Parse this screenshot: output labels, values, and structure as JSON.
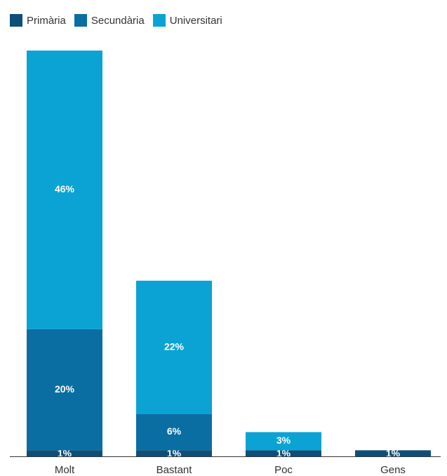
{
  "chart_data": {
    "type": "bar",
    "stacked": true,
    "categories": [
      "Molt",
      "Bastant",
      "Poc",
      "Gens"
    ],
    "series": [
      {
        "name": "Primària",
        "color": "#0d4f78",
        "values": [
          1,
          1,
          1,
          1
        ],
        "labels": [
          "1%",
          "1%",
          "1%",
          "1%"
        ]
      },
      {
        "name": "Secundària",
        "color": "#0a6ea3",
        "values": [
          20,
          6,
          0,
          0
        ],
        "labels": [
          "20%",
          "6%",
          "",
          ""
        ]
      },
      {
        "name": "Universitari",
        "color": "#0aa3d4",
        "values": [
          46,
          22,
          3,
          0
        ],
        "labels": [
          "46%",
          "22%",
          "3%",
          ""
        ]
      }
    ],
    "ylim": [
      0,
      67
    ],
    "grid": false,
    "legend_position": "top-left",
    "title": "",
    "xlabel": "",
    "ylabel": ""
  }
}
